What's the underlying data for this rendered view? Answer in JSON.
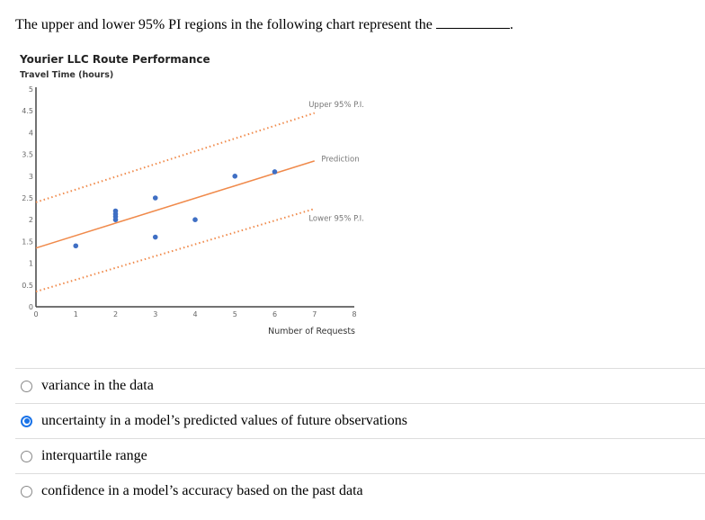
{
  "question": {
    "text": "The upper and lower 95% PI regions in the following chart represent the",
    "suffix": "."
  },
  "options": [
    {
      "label": "variance in the data",
      "selected": false
    },
    {
      "label": "uncertainty in a model’s predicted values of future observations",
      "selected": true
    },
    {
      "label": "interquartile range",
      "selected": false
    },
    {
      "label": "confidence in a model’s accuracy based on the past data",
      "selected": false
    }
  ],
  "chart_data": {
    "type": "scatter",
    "title": "Yourier LLC Route Performance",
    "ylabel": "Travel Time (hours)",
    "xlabel": "Number of Requests",
    "xlim": [
      0,
      8
    ],
    "ylim": [
      0,
      5
    ],
    "xticks": [
      "0",
      "1",
      "2",
      "3",
      "4",
      "5",
      "6",
      "7",
      "8"
    ],
    "yticks": [
      "0",
      "0.5",
      "1",
      "1.5",
      "2",
      "2.5",
      "3",
      "3.5",
      "4",
      "4.5",
      "5"
    ],
    "points": [
      [
        1,
        1.4
      ],
      [
        2,
        2.0
      ],
      [
        2,
        2.07
      ],
      [
        2,
        2.13
      ],
      [
        2,
        2.2
      ],
      [
        3,
        2.5
      ],
      [
        3,
        1.6
      ],
      [
        4,
        2.0
      ],
      [
        5,
        3.0
      ],
      [
        6,
        3.1
      ]
    ],
    "lines": [
      {
        "name": "Prediction",
        "from": [
          0,
          1.35
        ],
        "to": [
          7,
          3.35
        ],
        "style": "solid"
      },
      {
        "name": "Upper 95% P.I.",
        "from": [
          0,
          2.4
        ],
        "to": [
          7,
          4.45
        ],
        "style": "dotted"
      },
      {
        "name": "Lower 95% P.I.",
        "from": [
          0,
          0.35
        ],
        "to": [
          7,
          2.25
        ],
        "style": "dotted"
      }
    ],
    "colors": {
      "points": "#3f6fc4",
      "lines": "#f08a4b",
      "axis": "#444",
      "text": "#666"
    }
  }
}
